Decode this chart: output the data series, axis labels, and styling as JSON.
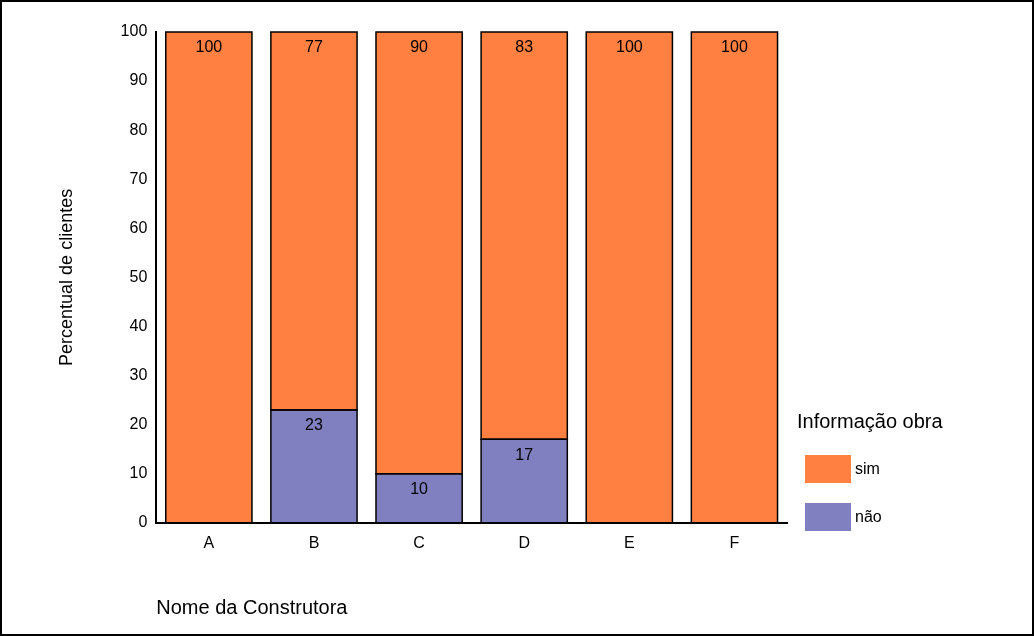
{
  "chart_data": {
    "type": "bar",
    "stacked": true,
    "xlabel": "Nome da Construtora",
    "ylabel": "Percentual de clientes",
    "legend_title": "Informação obra",
    "legend": "right",
    "grid": false,
    "categories": [
      "A",
      "B",
      "C",
      "D",
      "E",
      "F"
    ],
    "ylim": [
      0,
      100
    ],
    "yticks": [
      0,
      10,
      20,
      30,
      40,
      50,
      60,
      70,
      80,
      90,
      100
    ],
    "series": [
      {
        "name": "não",
        "color": "#8080c0",
        "values": [
          0,
          23,
          10,
          17,
          0,
          0
        ],
        "value_labels": [
          null,
          "23",
          "10",
          "17",
          null,
          null
        ]
      },
      {
        "name": "sim",
        "color": "#ff8040",
        "values": [
          100,
          77,
          90,
          83,
          100,
          100
        ],
        "value_labels": [
          "100",
          "77",
          "90",
          "83",
          "100",
          "100"
        ]
      }
    ]
  }
}
